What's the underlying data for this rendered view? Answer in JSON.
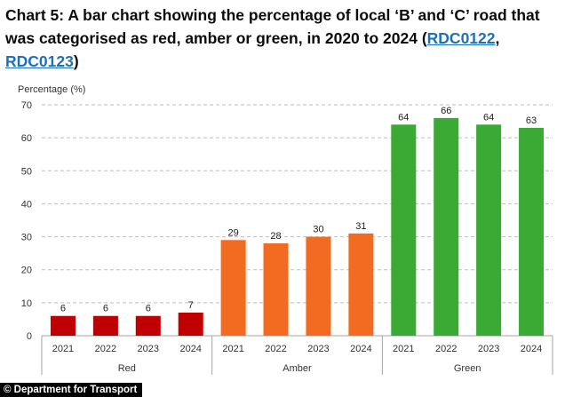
{
  "page": {
    "title_prefix": "Chart 5: A bar chart showing the percentage of local ‘B’ and ‘C’ road that was categorised as red, amber or green, in 2020 to 2024 (",
    "link1": "RDC0122",
    "separator": ", ",
    "link2": "RDC0123",
    "title_suffix": ")",
    "footer": "© Department for Transport"
  },
  "chart_data": {
    "type": "bar",
    "ylabel": "Percentage (%)",
    "ylim": [
      0,
      70
    ],
    "yticks": [
      0,
      10,
      20,
      30,
      40,
      50,
      60,
      70
    ],
    "grid": true,
    "groups": [
      {
        "name": "Red",
        "color": "#c00000",
        "categories": [
          "2021",
          "2022",
          "2023",
          "2024"
        ],
        "values": [
          6,
          6,
          6,
          7
        ]
      },
      {
        "name": "Amber",
        "color": "#f26b21",
        "categories": [
          "2021",
          "2022",
          "2023",
          "2024"
        ],
        "values": [
          29,
          28,
          30,
          31
        ]
      },
      {
        "name": "Green",
        "color": "#3aaa35",
        "categories": [
          "2021",
          "2022",
          "2023",
          "2024"
        ],
        "values": [
          64,
          66,
          64,
          63
        ]
      }
    ]
  }
}
